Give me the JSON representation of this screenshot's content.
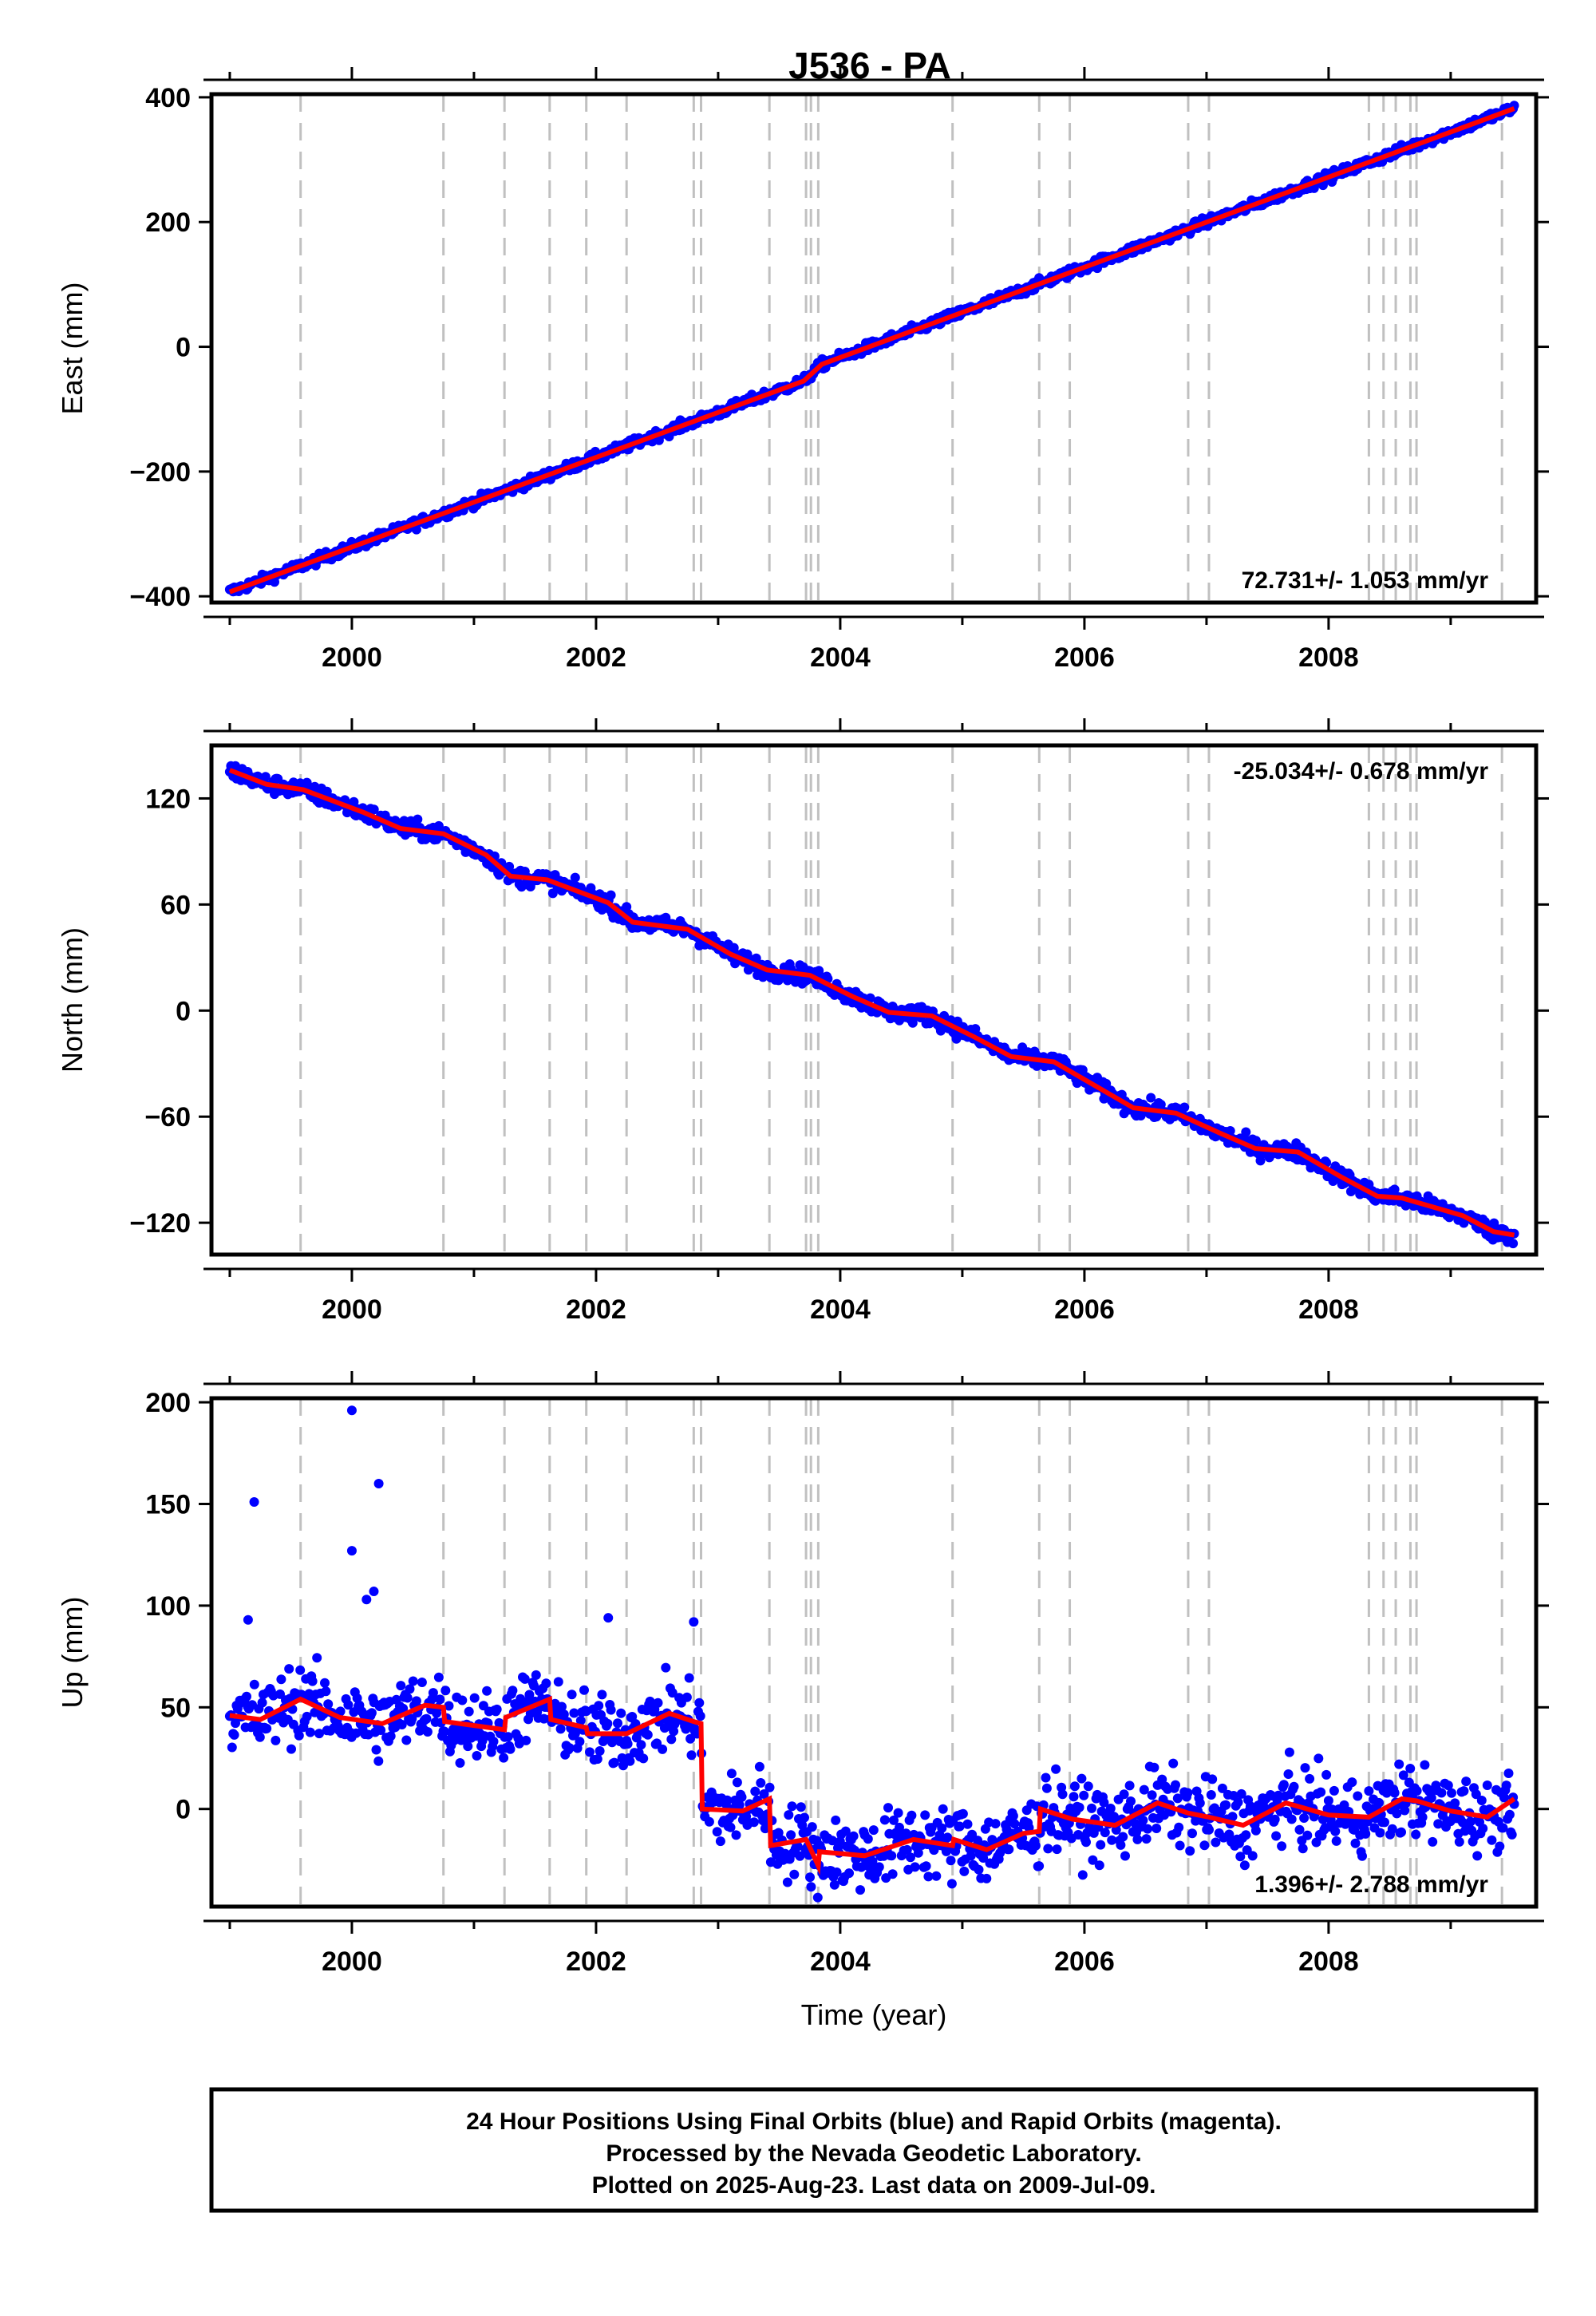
{
  "chart_data": {
    "title": "J536 - PA",
    "xlabel": "Time (year)",
    "x_ticks": [
      2000,
      2002,
      2004,
      2006,
      2008
    ],
    "xlim": [
      1998.85,
      2009.7
    ],
    "series_colors": {
      "daily_positions": "#0000ff",
      "model": "#ff0000",
      "discontinuities": "#c0c0c0"
    },
    "discontinuity_years": [
      1999.58,
      2000.75,
      2001.25,
      2001.62,
      2001.92,
      2002.25,
      2002.8,
      2002.86,
      2003.42,
      2003.72,
      2003.76,
      2003.82,
      2004.92,
      2005.63,
      2005.88,
      2006.85,
      2007.02,
      2008.33,
      2008.45,
      2008.55,
      2008.67,
      2008.72,
      2009.42
    ],
    "panels": [
      {
        "type": "scatter",
        "ylabel": "East (mm)",
        "ylim": [
          -410,
          405
        ],
        "y_ticks": [
          -400,
          -200,
          0,
          200,
          400
        ],
        "rate": "72.731+/- 1.053 mm/yr",
        "rate_position": "bottom-right",
        "trend": [
          [
            1999.0,
            -393
          ],
          [
            2003.7,
            -55
          ],
          [
            2003.85,
            -28
          ],
          [
            2009.52,
            382
          ]
        ],
        "noise_mm": 4,
        "outliers": []
      },
      {
        "type": "scatter",
        "ylabel": "North (mm)",
        "ylim": [
          -138,
          150
        ],
        "y_ticks": [
          -120,
          -60,
          0,
          60,
          120
        ],
        "rate": "-25.034+/- 0.678 mm/yr",
        "rate_position": "top-right",
        "trend": [
          [
            1999.0,
            136
          ],
          [
            1999.3,
            128
          ],
          [
            1999.6,
            125
          ],
          [
            2000.1,
            112
          ],
          [
            2000.4,
            103
          ],
          [
            2000.75,
            100
          ],
          [
            2001.1,
            88
          ],
          [
            2001.3,
            76
          ],
          [
            2001.6,
            74
          ],
          [
            2002.1,
            61
          ],
          [
            2002.3,
            50
          ],
          [
            2002.75,
            46
          ],
          [
            2003.1,
            32
          ],
          [
            2003.4,
            23
          ],
          [
            2003.75,
            20
          ],
          [
            2004.1,
            8
          ],
          [
            2004.4,
            -1
          ],
          [
            2004.75,
            -3
          ],
          [
            2005.1,
            -15
          ],
          [
            2005.4,
            -26
          ],
          [
            2005.75,
            -29
          ],
          [
            2006.1,
            -43
          ],
          [
            2006.4,
            -55
          ],
          [
            2006.75,
            -58
          ],
          [
            2007.1,
            -69
          ],
          [
            2007.4,
            -78
          ],
          [
            2007.75,
            -80
          ],
          [
            2008.1,
            -94
          ],
          [
            2008.4,
            -105
          ],
          [
            2008.6,
            -106
          ],
          [
            2009.1,
            -116
          ],
          [
            2009.35,
            -125
          ],
          [
            2009.52,
            -127
          ]
        ],
        "noise_mm": 2.5,
        "outliers": []
      },
      {
        "type": "scatter",
        "ylabel": "Up (mm)",
        "ylim": [
          -48,
          202
        ],
        "y_ticks": [
          0,
          50,
          100,
          150,
          200
        ],
        "rate": "1.396+/- 2.788 mm/yr",
        "rate_position": "bottom-right",
        "trend": [
          [
            1999.0,
            46
          ],
          [
            1999.25,
            44
          ],
          [
            1999.58,
            54
          ],
          [
            1999.9,
            45
          ],
          [
            2000.25,
            42
          ],
          [
            2000.6,
            51
          ],
          [
            2000.75,
            50
          ],
          [
            2000.76,
            43
          ],
          [
            2001.25,
            39
          ],
          [
            2001.26,
            45
          ],
          [
            2001.62,
            54
          ],
          [
            2001.63,
            44
          ],
          [
            2001.92,
            40
          ],
          [
            2001.93,
            37
          ],
          [
            2002.25,
            37
          ],
          [
            2002.6,
            47
          ],
          [
            2002.8,
            43
          ],
          [
            2002.86,
            42
          ],
          [
            2002.87,
            0
          ],
          [
            2003.2,
            -1
          ],
          [
            2003.42,
            5
          ],
          [
            2003.43,
            -18
          ],
          [
            2003.72,
            -15
          ],
          [
            2003.76,
            -20
          ],
          [
            2003.82,
            -28
          ],
          [
            2003.83,
            -21
          ],
          [
            2004.2,
            -23
          ],
          [
            2004.6,
            -15
          ],
          [
            2004.92,
            -18
          ],
          [
            2004.93,
            -15
          ],
          [
            2005.2,
            -20
          ],
          [
            2005.5,
            -12
          ],
          [
            2005.63,
            -11
          ],
          [
            2005.64,
            0
          ],
          [
            2005.9,
            -5
          ],
          [
            2006.25,
            -8
          ],
          [
            2006.6,
            3
          ],
          [
            2006.85,
            -2
          ],
          [
            2007.02,
            -4
          ],
          [
            2007.3,
            -8
          ],
          [
            2007.65,
            3
          ],
          [
            2008.0,
            -3
          ],
          [
            2008.33,
            -4
          ],
          [
            2008.6,
            5
          ],
          [
            2008.72,
            4
          ],
          [
            2009.0,
            -1
          ],
          [
            2009.3,
            -4
          ],
          [
            2009.52,
            5
          ]
        ],
        "noise_mm": 9,
        "outliers": [
          [
            1999.2,
            151
          ],
          [
            2000.0,
            127
          ],
          [
            2000.0,
            196
          ],
          [
            2000.22,
            160
          ],
          [
            2000.18,
            107
          ],
          [
            2000.12,
            103
          ],
          [
            1999.15,
            93
          ],
          [
            2002.1,
            94
          ],
          [
            2002.8,
            92
          ]
        ]
      }
    ]
  },
  "footer": {
    "line1": "24 Hour Positions Using Final Orbits (blue) and Rapid Orbits (magenta).",
    "line2": "Processed by the Nevada Geodetic Laboratory.",
    "line3": "Plotted on 2025-Aug-23. Last data on 2009-Jul-09."
  }
}
